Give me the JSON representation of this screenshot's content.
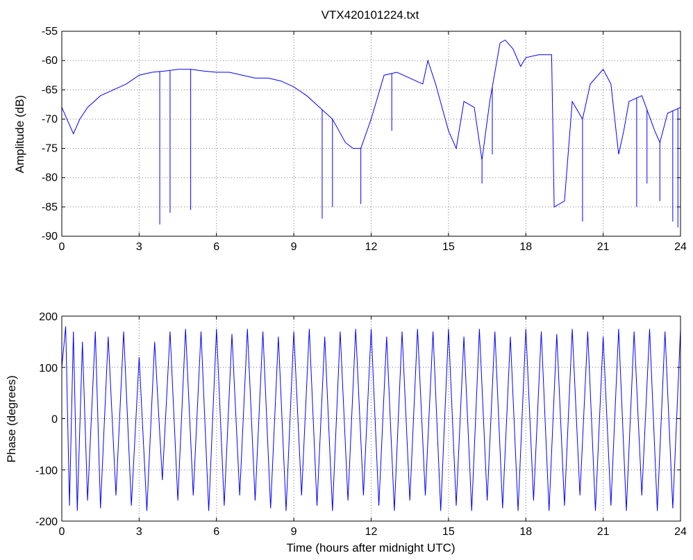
{
  "chart_data": [
    {
      "type": "line",
      "title": "VTX420101224.txt",
      "xlabel": "",
      "ylabel": "Amplitude (dB)",
      "xlim": [
        0,
        24
      ],
      "ylim": [
        -90,
        -55
      ],
      "xticks": [
        "0",
        "3",
        "6",
        "9",
        "12",
        "15",
        "18",
        "21",
        "24"
      ],
      "yticks": [
        "-55",
        "-60",
        "-65",
        "-70",
        "-75",
        "-80",
        "-85",
        "-90"
      ],
      "grid": true,
      "color": "#0000ff",
      "series": [
        {
          "x": [
            0,
            0.2,
            0.45,
            0.7,
            1.0,
            1.5,
            2.0,
            2.5,
            3.0,
            3.5,
            4.0,
            4.5,
            5.0,
            5.5,
            6.0,
            6.5,
            7.0,
            7.5,
            8.0,
            8.5,
            9.0,
            9.5,
            10.0,
            10.5,
            11.0,
            11.3,
            11.6,
            12.0,
            12.5,
            13.0,
            13.5,
            14.0,
            14.2,
            14.5,
            15.0,
            15.3,
            15.6,
            16.0,
            16.3,
            16.6,
            17.0,
            17.2,
            17.5,
            17.8,
            18.0,
            18.5,
            19.0,
            19.1,
            19.5,
            19.8,
            20.2,
            20.5,
            21.0,
            21.3,
            21.6,
            21.8,
            22.0,
            22.5,
            23.0,
            23.2,
            23.5,
            24.0
          ],
          "y": [
            -68,
            -70,
            -72.5,
            -70,
            -68,
            -66,
            -65,
            -64,
            -62.5,
            -62,
            -61.8,
            -61.5,
            -61.5,
            -61.8,
            -62,
            -62,
            -62.5,
            -63,
            -63,
            -63.5,
            -64.5,
            -66,
            -68,
            -70,
            -74,
            -75,
            -75,
            -70,
            -62.5,
            -62,
            -63,
            -64,
            -60,
            -64,
            -72,
            -75,
            -67,
            -68,
            -77,
            -67,
            -57,
            -56.5,
            -58,
            -61,
            -59.5,
            -59,
            -59,
            -85,
            -84,
            -67,
            -70,
            -64,
            -61.5,
            -64,
            -76,
            -72,
            -67,
            -66,
            -72,
            -74,
            -69,
            -68
          ]
        }
      ],
      "spikes": [
        {
          "x": 3.8,
          "y": -88
        },
        {
          "x": 4.2,
          "y": -86
        },
        {
          "x": 5.0,
          "y": -85.5
        },
        {
          "x": 10.1,
          "y": -87
        },
        {
          "x": 10.5,
          "y": -85
        },
        {
          "x": 11.6,
          "y": -84.5
        },
        {
          "x": 12.8,
          "y": -72
        },
        {
          "x": 16.3,
          "y": -81
        },
        {
          "x": 16.7,
          "y": -76
        },
        {
          "x": 20.2,
          "y": -87.5
        },
        {
          "x": 22.3,
          "y": -85
        },
        {
          "x": 22.7,
          "y": -81
        },
        {
          "x": 23.2,
          "y": -84
        },
        {
          "x": 23.7,
          "y": -87.5
        },
        {
          "x": 23.9,
          "y": -88.5
        }
      ]
    },
    {
      "type": "line",
      "title": "",
      "xlabel": "Time (hours after midnight UTC)",
      "ylabel": "Phase (degrees)",
      "xlim": [
        0,
        24
      ],
      "ylim": [
        -200,
        200
      ],
      "xticks": [
        "0",
        "3",
        "6",
        "9",
        "12",
        "15",
        "18",
        "21",
        "24"
      ],
      "yticks": [
        "200",
        "100",
        "0",
        "-100",
        "-200"
      ],
      "grid": true,
      "color": "#0000ff",
      "series": [
        {
          "x": [
            0,
            0.15,
            0.3,
            0.45,
            0.6,
            0.8,
            1.0,
            1.3,
            1.5,
            1.8,
            2.1,
            2.4,
            2.7,
            3.0,
            3.3,
            3.6,
            3.9,
            4.2,
            4.5,
            4.8,
            5.1,
            5.4,
            5.7,
            6.0,
            6.3,
            6.6,
            6.9,
            7.2,
            7.5,
            7.8,
            8.1,
            8.4,
            8.7,
            9.0,
            9.3,
            9.6,
            9.9,
            10.2,
            10.5,
            10.8,
            11.1,
            11.4,
            11.7,
            12.0,
            12.3,
            12.6,
            12.9,
            13.2,
            13.5,
            13.8,
            14.1,
            14.4,
            14.7,
            15.0,
            15.3,
            15.6,
            15.9,
            16.2,
            16.5,
            16.8,
            17.1,
            17.4,
            17.7,
            18.0,
            18.3,
            18.6,
            18.9,
            19.2,
            19.5,
            19.8,
            20.1,
            20.4,
            20.7,
            21.0,
            21.3,
            21.6,
            21.9,
            22.2,
            22.5,
            22.8,
            23.1,
            23.4,
            23.7,
            24.0
          ],
          "y": [
            100,
            180,
            -170,
            170,
            -180,
            150,
            -160,
            170,
            -175,
            160,
            -150,
            170,
            -170,
            120,
            -180,
            150,
            -120,
            170,
            -160,
            175,
            -150,
            170,
            -180,
            175,
            -170,
            165,
            -150,
            175,
            -160,
            170,
            -175,
            160,
            -180,
            170,
            -150,
            175,
            -170,
            160,
            -180,
            170,
            -160,
            175,
            -150,
            175,
            -170,
            160,
            -180,
            170,
            -160,
            175,
            -150,
            170,
            -180,
            175,
            -170,
            160,
            -180,
            175,
            -160,
            170,
            -175,
            160,
            -180,
            175,
            -160,
            170,
            -180,
            165,
            -170,
            175,
            -150,
            170,
            -180,
            160,
            -170,
            175,
            -180,
            170,
            -150,
            175,
            -180,
            170,
            -175,
            175
          ]
        }
      ]
    }
  ]
}
